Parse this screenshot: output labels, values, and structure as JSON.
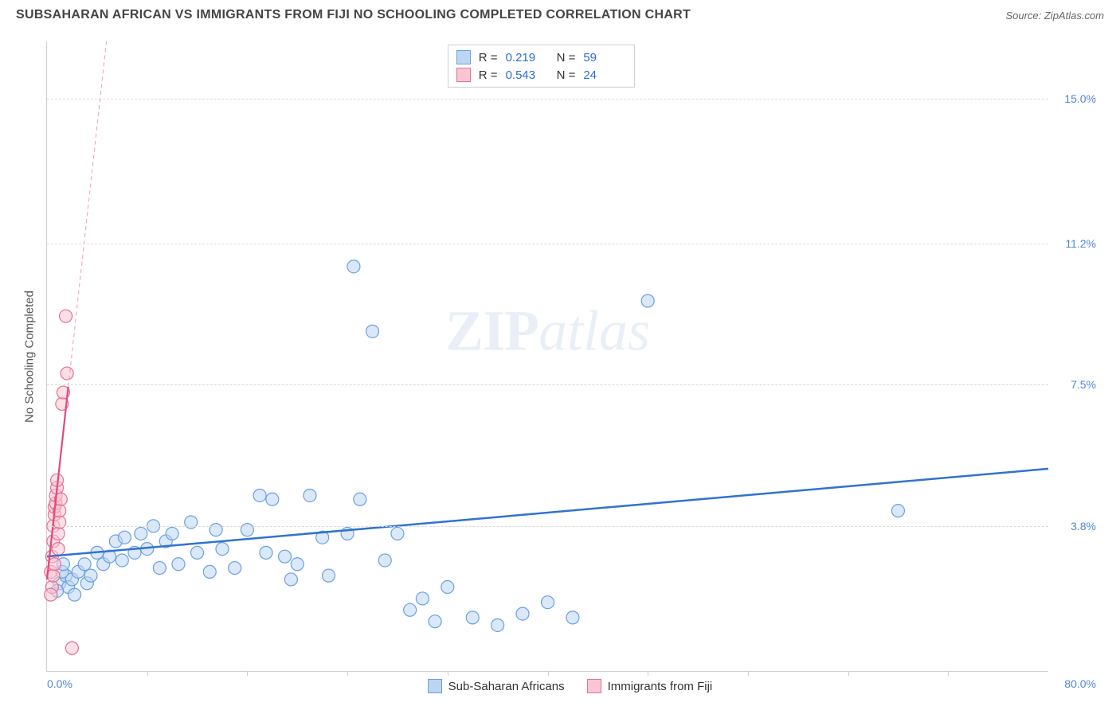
{
  "header": {
    "title": "SUBSAHARAN AFRICAN VS IMMIGRANTS FROM FIJI NO SCHOOLING COMPLETED CORRELATION CHART",
    "source": "Source: ZipAtlas.com"
  },
  "watermark": {
    "zip": "ZIP",
    "atlas": "atlas"
  },
  "chart": {
    "type": "scatter",
    "ylabel": "No Schooling Completed",
    "xlim": [
      0,
      80
    ],
    "ylim": [
      0,
      16.5
    ],
    "xtick_step": 8,
    "ygrid": [
      3.8,
      7.5,
      11.2,
      15.0
    ],
    "ytick_labels": [
      "3.8%",
      "7.5%",
      "11.2%",
      "15.0%"
    ],
    "xmin_label": "0.0%",
    "xmax_label": "80.0%",
    "background_color": "#ffffff",
    "grid_color": "#d9d9d9",
    "axis_color": "#cfcfcf",
    "marker_radius": 8,
    "series": [
      {
        "id": "blue",
        "label": "Sub-Saharan Africans",
        "fill": "#bcd6f2",
        "stroke": "#6aa0e0",
        "fill_opacity": 0.55,
        "R": "0.219",
        "N": "59",
        "trend": {
          "y_at_xmin": 3.0,
          "y_at_xmax": 5.3,
          "stroke": "#2f73d0",
          "width": 2.5,
          "dash": ""
        },
        "points": [
          [
            1.0,
            2.3
          ],
          [
            1.5,
            2.5
          ],
          [
            1.7,
            2.2
          ],
          [
            1.2,
            2.6
          ],
          [
            0.8,
            2.1
          ],
          [
            2.0,
            2.4
          ],
          [
            2.5,
            2.6
          ],
          [
            3.0,
            2.8
          ],
          [
            3.2,
            2.3
          ],
          [
            3.5,
            2.5
          ],
          [
            4.0,
            3.1
          ],
          [
            4.5,
            2.8
          ],
          [
            5.0,
            3.0
          ],
          [
            5.5,
            3.4
          ],
          [
            6.0,
            2.9
          ],
          [
            6.2,
            3.5
          ],
          [
            7.0,
            3.1
          ],
          [
            7.5,
            3.6
          ],
          [
            8.0,
            3.2
          ],
          [
            8.5,
            3.8
          ],
          [
            9.0,
            2.7
          ],
          [
            9.5,
            3.4
          ],
          [
            10.0,
            3.6
          ],
          [
            10.5,
            2.8
          ],
          [
            11.5,
            3.9
          ],
          [
            12.0,
            3.1
          ],
          [
            13.0,
            2.6
          ],
          [
            13.5,
            3.7
          ],
          [
            14.0,
            3.2
          ],
          [
            15.0,
            2.7
          ],
          [
            16.0,
            3.7
          ],
          [
            17.0,
            4.6
          ],
          [
            17.5,
            3.1
          ],
          [
            18.0,
            4.5
          ],
          [
            19.0,
            3.0
          ],
          [
            19.5,
            2.4
          ],
          [
            20.0,
            2.8
          ],
          [
            21.0,
            4.6
          ],
          [
            22.0,
            3.5
          ],
          [
            22.5,
            2.5
          ],
          [
            24.0,
            3.6
          ],
          [
            25.0,
            4.5
          ],
          [
            27.0,
            2.9
          ],
          [
            28.0,
            3.6
          ],
          [
            29.0,
            1.6
          ],
          [
            30.0,
            1.9
          ],
          [
            31.0,
            1.3
          ],
          [
            32.0,
            2.2
          ],
          [
            34.0,
            1.4
          ],
          [
            36.0,
            1.2
          ],
          [
            38.0,
            1.5
          ],
          [
            40.0,
            1.8
          ],
          [
            42.0,
            1.4
          ],
          [
            24.5,
            10.6
          ],
          [
            26.0,
            8.9
          ],
          [
            48.0,
            9.7
          ],
          [
            68.0,
            4.2
          ],
          [
            2.2,
            2.0
          ],
          [
            1.3,
            2.8
          ]
        ]
      },
      {
        "id": "pink",
        "label": "Immigrants from Fiji",
        "fill": "#f7c6d2",
        "stroke": "#e66f95",
        "fill_opacity": 0.55,
        "R": "0.543",
        "N": "24",
        "trend": {
          "y_at_xmin": 2.4,
          "y_at_xmax": 240,
          "stroke": "#e14a7a",
          "width": 2.2,
          "dash": ""
        },
        "trend_extra": {
          "stroke": "#e9a0b8",
          "width": 1,
          "dash": "5,4"
        },
        "points": [
          [
            0.3,
            2.6
          ],
          [
            0.4,
            3.0
          ],
          [
            0.5,
            3.4
          ],
          [
            0.5,
            3.8
          ],
          [
            0.6,
            4.1
          ],
          [
            0.6,
            4.3
          ],
          [
            0.7,
            4.4
          ],
          [
            0.7,
            4.6
          ],
          [
            0.8,
            4.8
          ],
          [
            0.8,
            5.0
          ],
          [
            0.9,
            3.2
          ],
          [
            0.9,
            3.6
          ],
          [
            1.0,
            3.9
          ],
          [
            1.0,
            4.2
          ],
          [
            1.1,
            4.5
          ],
          [
            1.2,
            7.0
          ],
          [
            1.3,
            7.3
          ],
          [
            1.6,
            7.8
          ],
          [
            1.5,
            9.3
          ],
          [
            0.4,
            2.2
          ],
          [
            0.5,
            2.5
          ],
          [
            0.6,
            2.8
          ],
          [
            2.0,
            0.6
          ],
          [
            0.3,
            2.0
          ]
        ]
      }
    ],
    "legend_top": {
      "r_label": "R  =",
      "n_label": "N  ="
    }
  }
}
